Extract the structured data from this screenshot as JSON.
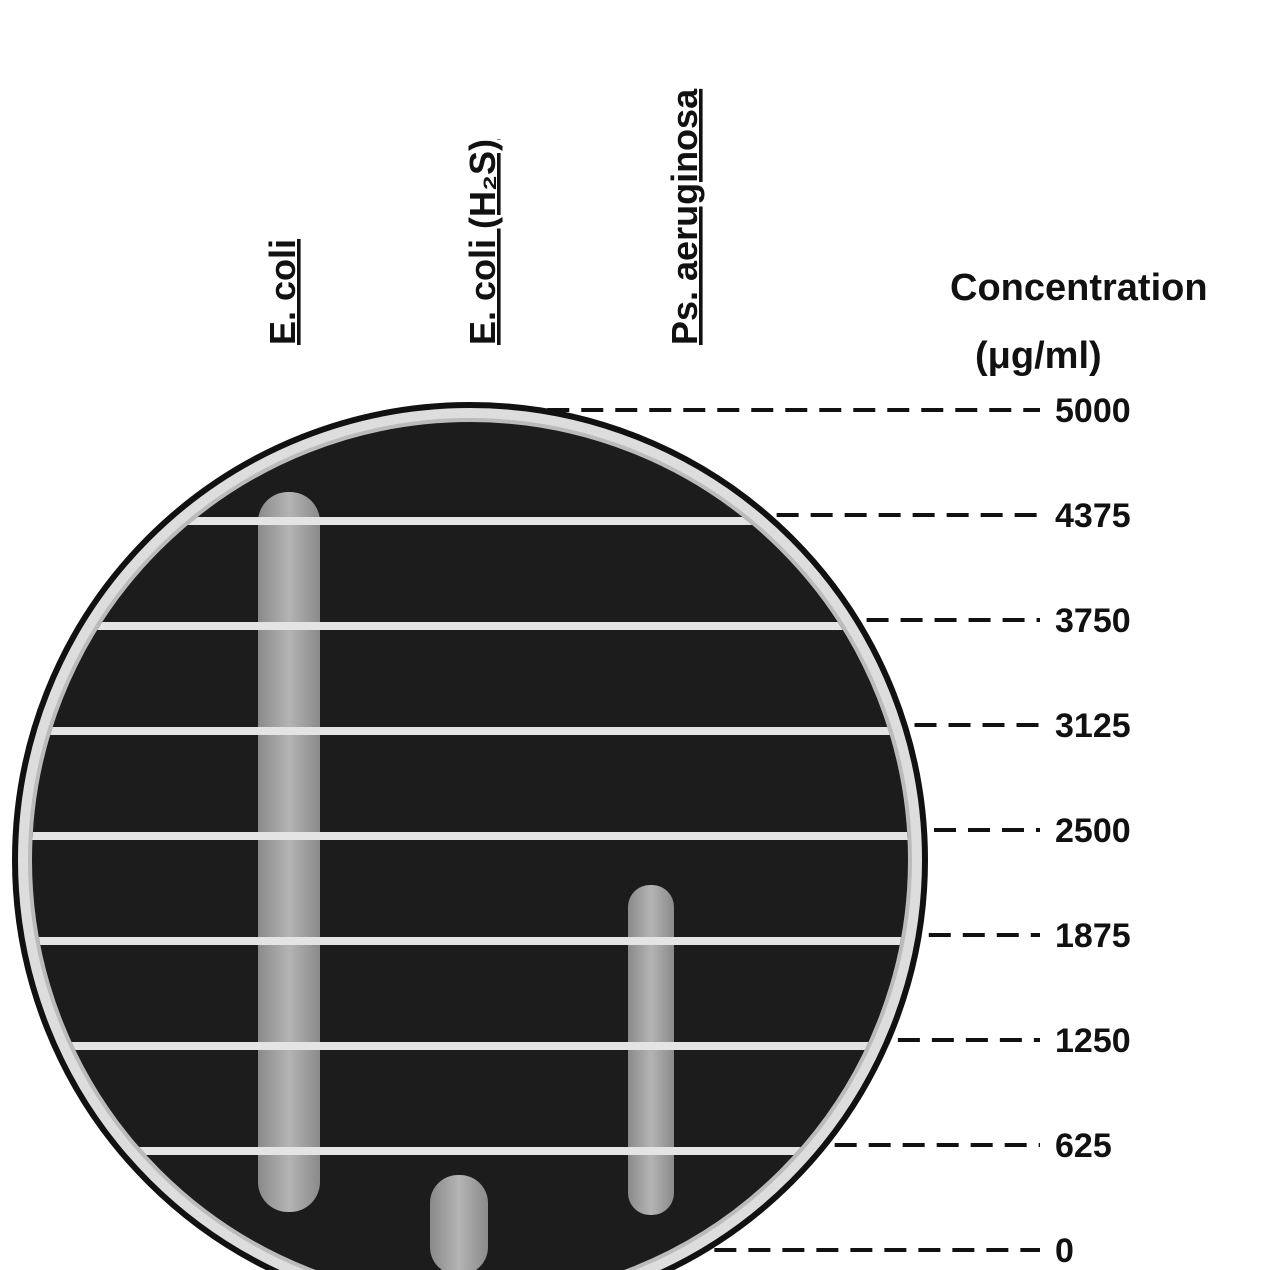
{
  "columns": [
    {
      "label": "E. coli"
    },
    {
      "label": "E. coli (H₂S)"
    },
    {
      "label": "Ps. aeruginosa"
    }
  ],
  "scale": {
    "title": "Concentration",
    "unit": "(μg/ml)",
    "levels": [
      5000,
      4375,
      3750,
      3125,
      2500,
      1875,
      1250,
      625,
      0
    ]
  }
}
